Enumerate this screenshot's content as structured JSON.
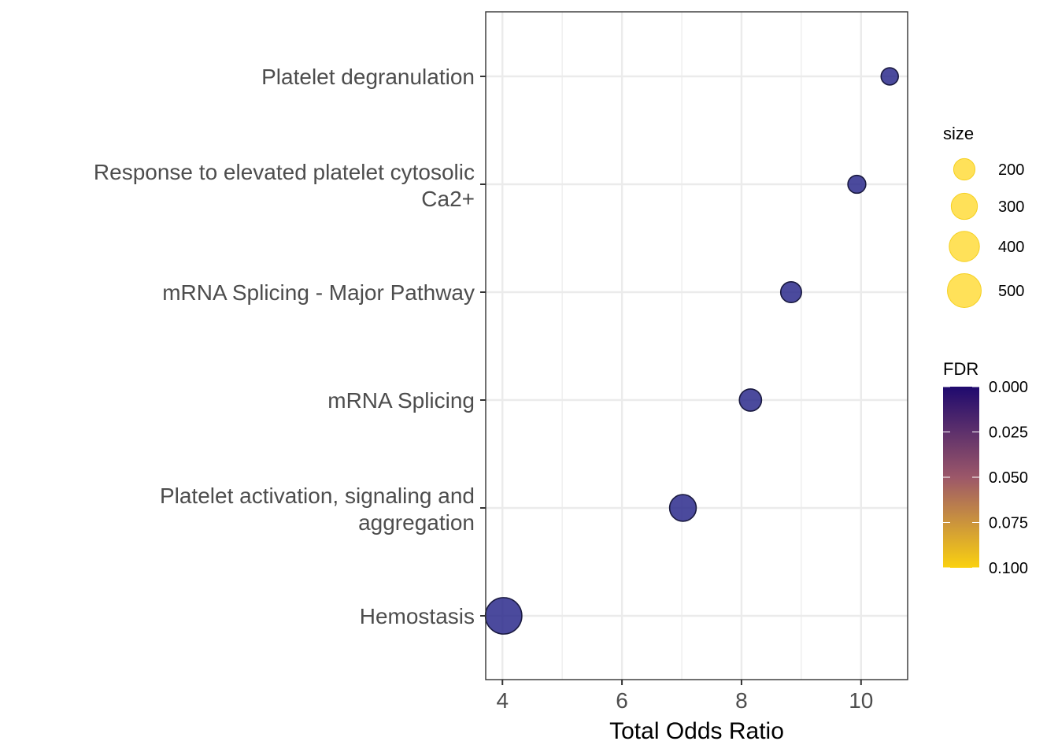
{
  "chart_data": {
    "type": "scatter",
    "xlabel": "Total Odds Ratio",
    "xlim": [
      3.72,
      10.78
    ],
    "x_ticks": [
      4,
      6,
      8,
      10
    ],
    "x_tick_labels": [
      "4",
      "6",
      "8",
      "10"
    ],
    "grid": true,
    "categories": [
      [
        "Platelet degranulation"
      ],
      [
        "Response to elevated platelet cytosolic",
        "Ca2+"
      ],
      [
        "mRNA Splicing - Major Pathway"
      ],
      [
        "mRNA Splicing"
      ],
      [
        "Platelet activation, signaling and",
        "aggregation"
      ],
      [
        "Hemostasis"
      ]
    ],
    "points": [
      {
        "category": "Platelet degranulation",
        "x": 10.48,
        "size": 130,
        "fdr": 0.012
      },
      {
        "category": "Response to elevated platelet cytosolic Ca2+",
        "x": 9.93,
        "size": 140,
        "fdr": 0.012
      },
      {
        "category": "mRNA Splicing - Major Pathway",
        "x": 8.83,
        "size": 190,
        "fdr": 0.01
      },
      {
        "category": "mRNA Splicing",
        "x": 8.15,
        "size": 215,
        "fdr": 0.01
      },
      {
        "category": "Platelet activation, signaling and aggregation",
        "x": 7.02,
        "size": 310,
        "fdr": 0.008
      },
      {
        "category": "Hemostasis",
        "x": 4.02,
        "size": 580,
        "fdr": 0.005
      }
    ],
    "size_legend": {
      "title": "size",
      "values": [
        200,
        300,
        400,
        500
      ],
      "labels": [
        "200",
        "300",
        "400",
        "500"
      ],
      "color": "#FFD92F"
    },
    "color_legend": {
      "title": "FDR",
      "range": [
        0.0,
        0.1
      ],
      "ticks": [
        0.0,
        0.025,
        0.05,
        0.075,
        0.1
      ],
      "tick_labels": [
        "0.000",
        "0.025",
        "0.050",
        "0.075",
        "0.100"
      ],
      "low_color": "#1F0A6E",
      "mid_color": "#9C5769",
      "high_color": "#FAD110"
    },
    "point_color": "#2B2A8C",
    "legend_position": "right"
  }
}
